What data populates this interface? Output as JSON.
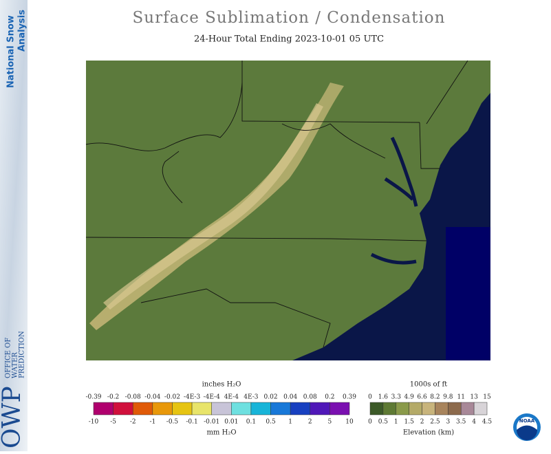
{
  "sidebar": {
    "title_line1": "National Snow",
    "title_line2": "Analysis",
    "logo": "OWP",
    "office_lines": [
      "OFFICE OF",
      "WATER",
      "PREDICTION"
    ]
  },
  "header": {
    "title": "Surface Sublimation / Condensation",
    "subtitle": "24-Hour Total Ending 2023-10-01 05 UTC"
  },
  "legend_water": {
    "top_title": "inches H₂O",
    "bottom_title": "mm H₂O",
    "top_labels": [
      "-0.39",
      "-0.2",
      "-0.08",
      "-0.04",
      "-0.02",
      "-4E-3",
      "-4E-4",
      "4E-4",
      "4E-3",
      "0.02",
      "0.04",
      "0.08",
      "0.2",
      "0.39"
    ],
    "bottom_labels": [
      "-10",
      "-5",
      "-2",
      "-1",
      "-0.5",
      "-0.1",
      "-0.01",
      "0.01",
      "0.1",
      "0.5",
      "1",
      "2",
      "5",
      "10"
    ],
    "colors": [
      "#b0006e",
      "#d0103c",
      "#e05a08",
      "#e8980a",
      "#e6c412",
      "#e8e46a",
      "#c8c4d8",
      "#6ee0e0",
      "#18b4d8",
      "#1878d8",
      "#1840c0",
      "#5018b8",
      "#7a10b0"
    ]
  },
  "legend_elevation": {
    "top_title": "1000s of ft",
    "bottom_title": "Elevation (km)",
    "top_labels": [
      "0",
      "1.6",
      "3.3",
      "4.9",
      "6.6",
      "8.2",
      "9.8",
      "11",
      "13",
      "15"
    ],
    "bottom_labels": [
      "0",
      "0.5",
      "1",
      "1.5",
      "2",
      "2.5",
      "3",
      "3.5",
      "4",
      "4.5"
    ],
    "colors": [
      "#3c5a28",
      "#5e7a34",
      "#8a9a4a",
      "#b4aa68",
      "#c8b47c",
      "#a8845c",
      "#8c6a4c",
      "#a88898",
      "#d8d4d8"
    ]
  },
  "badge": "NOAA"
}
